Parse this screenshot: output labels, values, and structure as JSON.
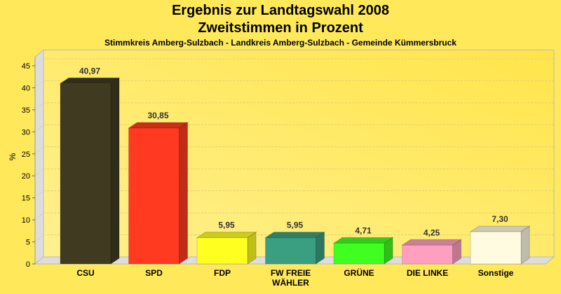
{
  "chart_data": {
    "type": "bar",
    "title": "Ergebnis zur Landtagswahl 2008",
    "subtitle": "Zweitstimmen in Prozent",
    "caption": "Stimmkreis Amberg-Sulzbach - Landkreis Amberg-Sulzbach - Gemeinde Kümmersbruck",
    "xlabel": "",
    "ylabel": "%",
    "ylim": [
      0,
      47
    ],
    "yticks": [
      0,
      5,
      10,
      15,
      20,
      25,
      30,
      35,
      40,
      45
    ],
    "grid": true,
    "categories": [
      "CSU",
      "SPD",
      "FDP",
      "FW FREIE WÄHLER",
      "GRÜNE",
      "DIE LINKE",
      "Sonstige"
    ],
    "category_lines": [
      [
        "CSU"
      ],
      [
        "SPD"
      ],
      [
        "FDP"
      ],
      [
        "FW FREIE",
        "WÄHLER"
      ],
      [
        "GRÜNE"
      ],
      [
        "DIE LINKE"
      ],
      [
        "Sonstige"
      ]
    ],
    "values": [
      40.97,
      30.85,
      5.95,
      5.95,
      4.71,
      4.25,
      7.3
    ],
    "labels": [
      "40,97",
      "30,85",
      "5,95",
      "5,95",
      "4,71",
      "4,25",
      "7,30"
    ],
    "colors": [
      "#3f3a20",
      "#ff3a20",
      "#ffff20",
      "#3a9f80",
      "#40ff20",
      "#ff9fc0",
      "#fffbe0"
    ]
  }
}
